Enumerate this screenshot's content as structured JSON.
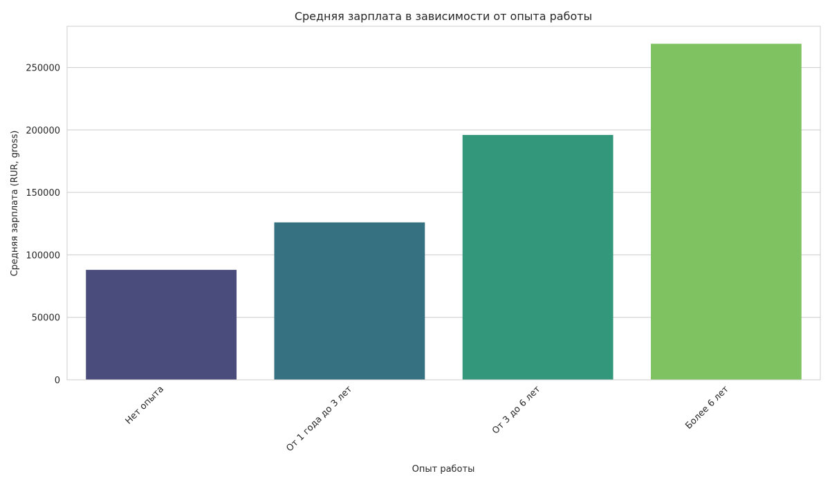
{
  "chart_data": {
    "type": "bar",
    "title": "Средняя зарплата в зависимости от опыта работы",
    "xlabel": "Опыт работы",
    "ylabel": "Средняя зарплата (RUR, gross)",
    "categories": [
      "Нет опыта",
      "От 1 года до 3 лет",
      "От 3 до 6 лет",
      "Более 6 лет"
    ],
    "values": [
      88000,
      126000,
      196000,
      269000
    ],
    "colors": [
      "#4a4c7c",
      "#367181",
      "#32977b",
      "#7fc261"
    ],
    "yticks": [
      0,
      50000,
      100000,
      150000,
      200000,
      250000
    ],
    "ylim": [
      0,
      283000
    ],
    "grid": "horizontal",
    "legend": "none"
  }
}
